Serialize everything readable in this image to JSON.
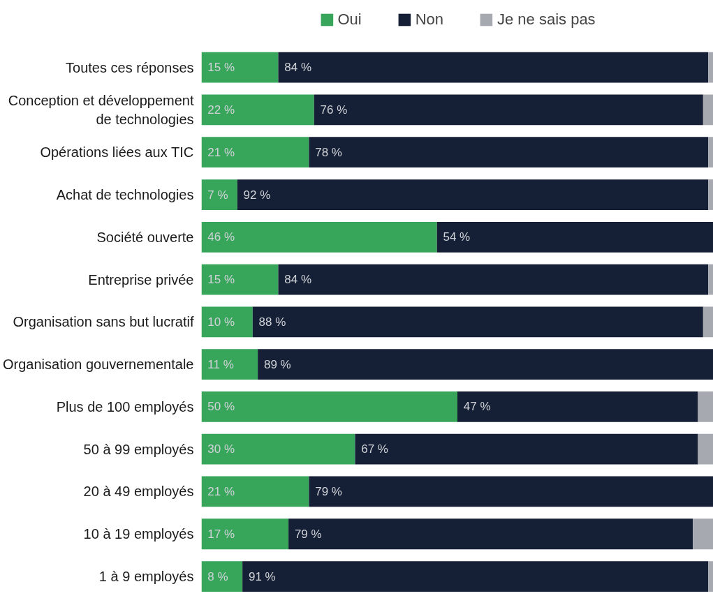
{
  "chart_data": {
    "type": "bar",
    "orientation": "horizontal",
    "stacked": true,
    "xlim": [
      0,
      100
    ],
    "tick_labels": "y",
    "legend": "top",
    "categories": [
      "Toutes ces réponses",
      "Conception et développement de technologies",
      "Opérations liées aux TIC",
      "Achat de technologies",
      "Société ouverte",
      "Entreprise privée",
      "Organisation sans but lucratif",
      "Organisation gouvernementale",
      "Plus de 100 employés",
      "50 à 99 employés",
      "20 à 49 employés",
      "10 à 19 employés",
      "1 à 9 employés"
    ],
    "series": [
      {
        "name": "Oui",
        "color": "#37a55a",
        "values": [
          15,
          22,
          21,
          7,
          46,
          15,
          10,
          11,
          50,
          30,
          21,
          17,
          8
        ],
        "value_labels": [
          "15 %",
          "22 %",
          "21 %",
          "7 %",
          "46 %",
          "15 %",
          "10 %",
          "11 %",
          "50 %",
          "30 %",
          "21 %",
          "17 %",
          "8 %"
        ]
      },
      {
        "name": "Non",
        "color": "#151f35",
        "values": [
          84,
          76,
          78,
          92,
          54,
          84,
          88,
          89,
          47,
          67,
          79,
          79,
          91
        ],
        "value_labels": [
          "84 %",
          "76 %",
          "78 %",
          "92 %",
          "54 %",
          "84 %",
          "88 %",
          "89 %",
          "47 %",
          "67 %",
          "79 %",
          "79 %",
          "91 %"
        ]
      },
      {
        "name": "Je ne sais pas",
        "color": "#a7a9b1",
        "values": [
          1,
          2,
          1,
          1,
          0,
          1,
          2,
          0,
          3,
          3,
          0,
          4,
          1
        ],
        "value_labels": [
          null,
          null,
          null,
          null,
          null,
          null,
          null,
          null,
          null,
          null,
          null,
          null,
          null
        ]
      }
    ]
  }
}
